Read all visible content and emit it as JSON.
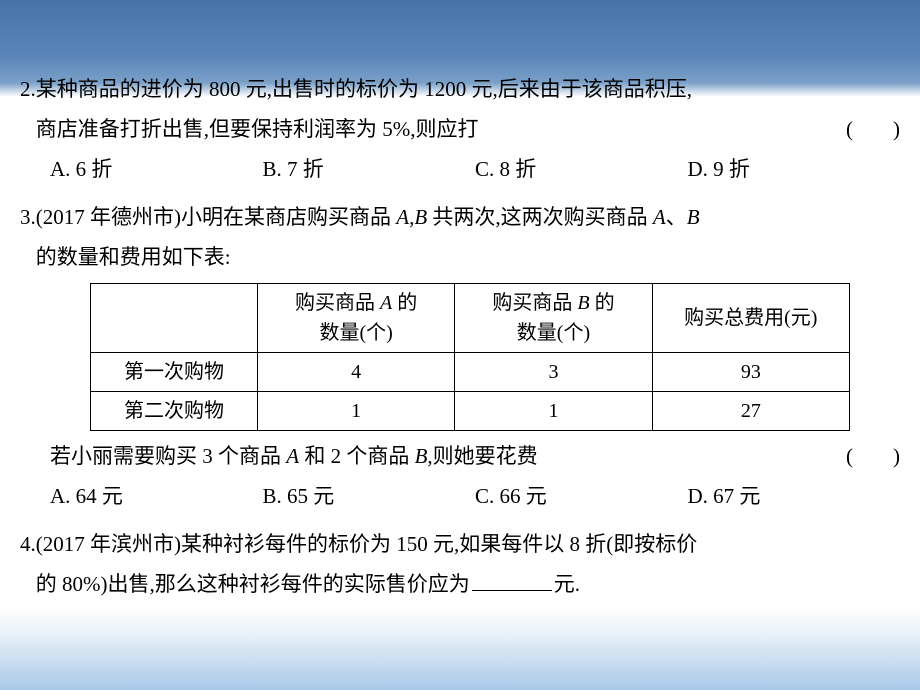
{
  "q2": {
    "num": "2. ",
    "line1": "某种商品的进价为 800 元,出售时的标价为 1200 元,后来由于该商品积压,",
    "line2": "商店准备打折出售,但要保持利润率为 5%,则应打",
    "paren_open": "(",
    "paren_close": ")",
    "opts": {
      "a": "A. 6 折",
      "b": "B. 7 折",
      "c": "C. 8 折",
      "d": "D. 9 折"
    }
  },
  "q3": {
    "num": "3. ",
    "line1_a": "(2017 年德州市)小明在某商店购买商品 ",
    "AB": "A,B",
    "line1_b": " 共两次,这两次购买商品 ",
    "A": "A",
    "comma": "、",
    "B": "B",
    "line2": "的数量和费用如下表:",
    "table": {
      "h_blank": "",
      "h_a1": "购买商品 ",
      "h_a2": " 的",
      "h_a3": "数量(个)",
      "h_b1": "购买商品 ",
      "h_b2": " 的",
      "h_b3": "数量(个)",
      "h_t": "购买总费用(元)",
      "r1": {
        "label": "第一次购物",
        "a": "4",
        "b": "3",
        "t": "93"
      },
      "r2": {
        "label": "第二次购物",
        "a": "1",
        "b": "1",
        "t": "27"
      }
    },
    "after1": "若小丽需要购买 3 个商品 ",
    "after2": " 和 2 个商品 ",
    "after3": ",则她要花费",
    "opts": {
      "a": "A. 64 元",
      "b": "B. 65 元",
      "c": "C. 66 元",
      "d": "D. 67 元"
    }
  },
  "q4": {
    "num": "4. ",
    "line1": "(2017 年滨州市)某种衬衫每件的标价为 150 元,如果每件以 8 折(即按标价",
    "line2a": "的 80%)出售,那么这种衬衫每件的实际售价应为",
    "line2b": "元."
  }
}
